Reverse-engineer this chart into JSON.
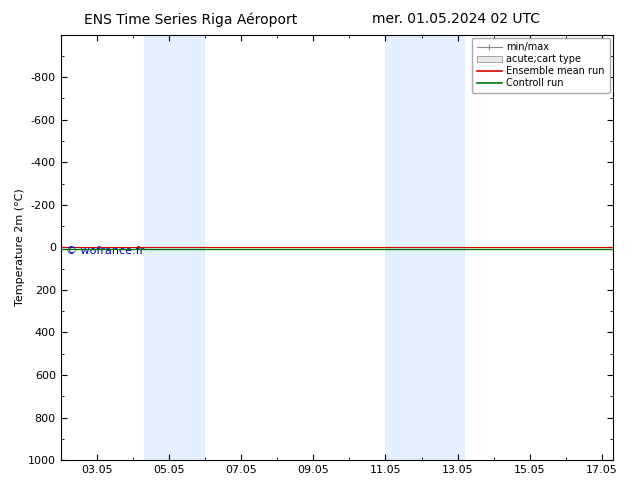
{
  "title_left": "ENS Time Series Riga Aéroport",
  "title_right": "mer. 01.05.2024 02 UTC",
  "ylabel": "Temperature 2m (°C)",
  "ylim_bottom": 1000,
  "ylim_top": -1000,
  "yticks": [
    -800,
    -600,
    -400,
    -200,
    0,
    200,
    400,
    600,
    800,
    1000
  ],
  "xmin": 2.0,
  "xmax": 17.3,
  "xtick_labels": [
    "03.05",
    "05.05",
    "07.05",
    "09.05",
    "11.05",
    "13.05",
    "15.05",
    "17.05"
  ],
  "xtick_positions": [
    3,
    5,
    7,
    9,
    11,
    13,
    15,
    17
  ],
  "blue_bands": [
    {
      "xstart": 4.3,
      "xend": 6.0
    },
    {
      "xstart": 11.0,
      "xend": 13.2
    }
  ],
  "ensemble_mean_y": 0.0,
  "control_run_y": 10.0,
  "ensemble_mean_color": "#dd0000",
  "control_run_color": "#007700",
  "band_color": "#ddeeff",
  "band_alpha": 0.85,
  "watermark": "© wofrance.fr",
  "watermark_color": "#0000bb",
  "legend_entries": [
    "min/max",
    "acute;cart type",
    "Ensemble mean run",
    "Controll run"
  ],
  "background_color": "#ffffff",
  "title_fontsize": 10,
  "axis_label_fontsize": 8,
  "tick_fontsize": 8,
  "legend_fontsize": 7
}
